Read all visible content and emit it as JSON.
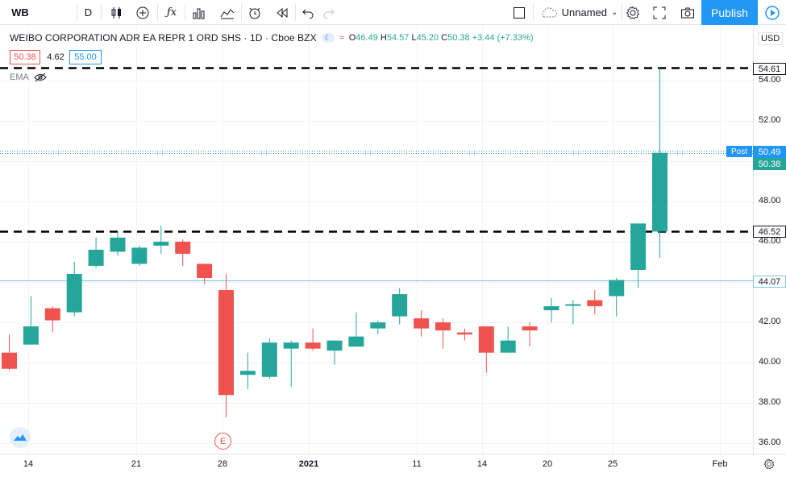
{
  "toolbar": {
    "symbol": "WB",
    "interval": "D",
    "layout_name": "Unnamed",
    "publish_label": "Publish"
  },
  "legend": {
    "title": "WEIBO CORPORATION ADR EA REPR 1 ORD SHS · 1D · Cboe BZX",
    "open_label": "O",
    "open": "46.49",
    "high_label": "H",
    "high": "54.57",
    "low_label": "L",
    "low": "45.20",
    "close_label": "C",
    "close": "50.38",
    "change": "+3.44 (+7.33%)",
    "bid": "50.38",
    "spread": "4.62",
    "ask": "55.00",
    "indicator": "EMA"
  },
  "price_axis": {
    "currency": "USD",
    "labels": [
      "54.00",
      "52.00",
      "50.00",
      "48.00",
      "46.00",
      "44.00",
      "42.00",
      "40.00",
      "38.00",
      "36.00"
    ],
    "tags": {
      "level_high": "54.61",
      "post_label": "Post",
      "post_price": "50.49",
      "last_price": "50.38",
      "level_low": "46.52",
      "hline": "44.07"
    }
  },
  "time_axis": {
    "labels": [
      "14",
      "21",
      "28",
      "2021",
      "11",
      "14",
      "20",
      "25",
      "Feb"
    ]
  },
  "earnings_marker": "E",
  "colors": {
    "up": "#26a69a",
    "down": "#ef5350",
    "accent": "#2196f3",
    "hline": "#7ac7e0"
  },
  "chart_data": {
    "type": "candlestick",
    "ylim": [
      35.5,
      55.3
    ],
    "ohlc": [
      {
        "o": 40.5,
        "h": 41.4,
        "l": 39.6,
        "c": 39.7
      },
      {
        "o": 40.9,
        "h": 43.3,
        "l": 40.9,
        "c": 41.8
      },
      {
        "o": 42.7,
        "h": 42.8,
        "l": 41.5,
        "c": 42.1
      },
      {
        "o": 42.5,
        "h": 45.0,
        "l": 42.3,
        "c": 44.4
      },
      {
        "o": 44.8,
        "h": 46.2,
        "l": 44.7,
        "c": 45.6
      },
      {
        "o": 45.5,
        "h": 46.5,
        "l": 45.3,
        "c": 46.2
      },
      {
        "o": 44.9,
        "h": 45.8,
        "l": 44.8,
        "c": 45.7
      },
      {
        "o": 45.8,
        "h": 46.8,
        "l": 45.4,
        "c": 46.0
      },
      {
        "o": 46.0,
        "h": 46.1,
        "l": 44.8,
        "c": 45.4
      },
      {
        "o": 44.9,
        "h": 44.9,
        "l": 43.9,
        "c": 44.2
      },
      {
        "o": 43.6,
        "h": 44.4,
        "l": 37.3,
        "c": 38.4
      },
      {
        "o": 39.4,
        "h": 40.5,
        "l": 38.7,
        "c": 39.6
      },
      {
        "o": 39.3,
        "h": 41.2,
        "l": 39.2,
        "c": 41.0
      },
      {
        "o": 40.7,
        "h": 41.1,
        "l": 38.8,
        "c": 41.0
      },
      {
        "o": 41.0,
        "h": 41.7,
        "l": 40.6,
        "c": 40.7
      },
      {
        "o": 40.6,
        "h": 41.1,
        "l": 39.9,
        "c": 41.1
      },
      {
        "o": 40.8,
        "h": 42.5,
        "l": 40.8,
        "c": 41.3
      },
      {
        "o": 41.7,
        "h": 42.1,
        "l": 41.4,
        "c": 42.0
      },
      {
        "o": 42.3,
        "h": 43.7,
        "l": 41.9,
        "c": 43.4
      },
      {
        "o": 42.2,
        "h": 42.6,
        "l": 41.3,
        "c": 41.7
      },
      {
        "o": 42.0,
        "h": 42.2,
        "l": 40.7,
        "c": 41.6
      },
      {
        "o": 41.5,
        "h": 41.7,
        "l": 41.1,
        "c": 41.4
      },
      {
        "o": 41.8,
        "h": 41.8,
        "l": 39.5,
        "c": 40.5
      },
      {
        "o": 40.5,
        "h": 41.8,
        "l": 40.5,
        "c": 41.1
      },
      {
        "o": 41.8,
        "h": 42.0,
        "l": 40.8,
        "c": 41.6
      },
      {
        "o": 42.6,
        "h": 43.2,
        "l": 42.0,
        "c": 42.8
      },
      {
        "o": 42.9,
        "h": 43.1,
        "l": 41.9,
        "c": 42.9
      },
      {
        "o": 43.1,
        "h": 43.6,
        "l": 42.4,
        "c": 42.8
      },
      {
        "o": 43.3,
        "h": 44.2,
        "l": 42.3,
        "c": 44.1
      },
      {
        "o": 44.6,
        "h": 46.8,
        "l": 43.7,
        "c": 46.9
      },
      {
        "o": 46.5,
        "h": 54.6,
        "l": 45.2,
        "c": 50.4
      }
    ]
  }
}
